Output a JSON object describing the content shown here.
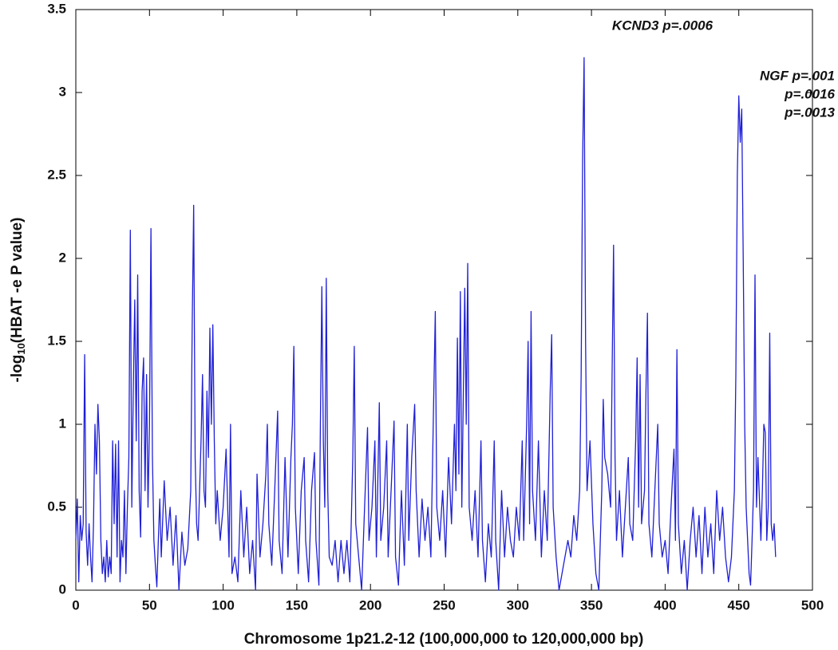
{
  "chart_data": {
    "type": "line",
    "x_label": "Chromosome 1p21.2-12 (100,000,000 to 120,000,000 bp)",
    "y_label": [
      "-log",
      "10",
      "(HBAT -e P value)"
    ],
    "annotations": [
      "KCND3 p=.0006",
      "NGF p=.001",
      "p=.0016",
      "p=.0013"
    ],
    "color": "#1f1fd6",
    "xlim": [
      0,
      500
    ],
    "xticks": [
      0,
      50,
      100,
      150,
      200,
      250,
      300,
      350,
      400,
      450,
      500
    ],
    "ylim": [
      0,
      3.5
    ],
    "yticks": [
      0,
      0.5,
      1,
      1.5,
      2,
      2.5,
      3,
      3.5
    ],
    "grid": false,
    "x": [
      0,
      1,
      2,
      3,
      4,
      5,
      6,
      7,
      8,
      9,
      10,
      11,
      12,
      13,
      14,
      15,
      16,
      17,
      18,
      19,
      20,
      21,
      22,
      23,
      24,
      25,
      26,
      27,
      28,
      29,
      30,
      31,
      32,
      33,
      34,
      35,
      36,
      37,
      38,
      39,
      40,
      41,
      42,
      43,
      44,
      45,
      46,
      47,
      48,
      49,
      50,
      51,
      52,
      53,
      54,
      55,
      56,
      57,
      58,
      60,
      62,
      64,
      66,
      68,
      70,
      72,
      74,
      76,
      78,
      79,
      80,
      81,
      82,
      83,
      85,
      86,
      87,
      88,
      89,
      90,
      91,
      92,
      93,
      94,
      95,
      96,
      98,
      100,
      102,
      104,
      105,
      106,
      108,
      110,
      112,
      114,
      116,
      118,
      120,
      122,
      123,
      125,
      127,
      129,
      130,
      131,
      133,
      135,
      137,
      138,
      140,
      142,
      144,
      146,
      147,
      148,
      149,
      151,
      153,
      155,
      156,
      158,
      160,
      162,
      163,
      165,
      166,
      167,
      168,
      169,
      170,
      171,
      172,
      174,
      176,
      178,
      180,
      182,
      184,
      186,
      188,
      189,
      190,
      192,
      194,
      196,
      198,
      199,
      201,
      203,
      204,
      206,
      207,
      209,
      211,
      212,
      214,
      216,
      217,
      219,
      221,
      223,
      225,
      226,
      228,
      230,
      231,
      233,
      235,
      237,
      239,
      241,
      243,
      244,
      245,
      247,
      249,
      251,
      253,
      255,
      257,
      258,
      259,
      260,
      261,
      262,
      264,
      265,
      266,
      267,
      269,
      271,
      273,
      275,
      276,
      278,
      280,
      282,
      284,
      285,
      287,
      289,
      291,
      293,
      295,
      297,
      299,
      301,
      303,
      304,
      306,
      307,
      308,
      309,
      310,
      312,
      314,
      316,
      318,
      320,
      322,
      323,
      324,
      326,
      328,
      330,
      332,
      334,
      336,
      338,
      340,
      342,
      343,
      344,
      345,
      346,
      347,
      349,
      351,
      353,
      355,
      357,
      358,
      359,
      361,
      363,
      364,
      365,
      366,
      367,
      369,
      371,
      373,
      375,
      376,
      378,
      380,
      381,
      382,
      383,
      384,
      386,
      387,
      388,
      389,
      391,
      393,
      395,
      396,
      398,
      400,
      402,
      404,
      406,
      407,
      408,
      409,
      411,
      413,
      415,
      417,
      419,
      421,
      423,
      425,
      427,
      429,
      431,
      433,
      435,
      437,
      439,
      441,
      443,
      445,
      447,
      448,
      449,
      450,
      451,
      452,
      453,
      454,
      455,
      457,
      458,
      459,
      460,
      461,
      462,
      463,
      464,
      465,
      466,
      467,
      468,
      469,
      470,
      471,
      472,
      473,
      474,
      475
    ],
    "values": [
      0.3,
      0.55,
      0.05,
      0.45,
      0.3,
      0.4,
      1.42,
      0.35,
      0.15,
      0.4,
      0.2,
      0.05,
      0.4,
      1.0,
      0.7,
      1.12,
      0.9,
      0.3,
      0.1,
      0.2,
      0.05,
      0.3,
      0.08,
      0.2,
      0.1,
      0.9,
      0.4,
      0.88,
      0.2,
      0.9,
      0.05,
      0.3,
      0.2,
      0.6,
      0.1,
      0.5,
      0.8,
      2.17,
      0.5,
      1.2,
      1.75,
      0.9,
      1.9,
      0.6,
      0.32,
      1.2,
      1.4,
      0.6,
      1.3,
      0.5,
      1.0,
      2.18,
      0.8,
      0.3,
      0.15,
      0.02,
      0.3,
      0.55,
      0.2,
      0.66,
      0.3,
      0.5,
      0.15,
      0.45,
      0,
      0.35,
      0.15,
      0.25,
      0.6,
      1.6,
      2.32,
      0.8,
      0.4,
      0.3,
      0.9,
      1.3,
      0.6,
      0.5,
      1.2,
      0.8,
      1.58,
      1.0,
      1.6,
      0.9,
      0.4,
      0.6,
      0.3,
      0.5,
      0.85,
      0.2,
      1.0,
      0.1,
      0.2,
      0.05,
      0.6,
      0.2,
      0.5,
      0.1,
      0.3,
      0,
      0.7,
      0.2,
      0.4,
      0.7,
      1.0,
      0.4,
      0.15,
      0.6,
      1.08,
      0.3,
      0.1,
      0.8,
      0.2,
      0.8,
      1.0,
      1.47,
      0.5,
      0.1,
      0.6,
      0.8,
      0.3,
      0.05,
      0.6,
      0.83,
      0.3,
      0.03,
      1.0,
      1.83,
      0.9,
      0.5,
      1.88,
      0.6,
      0.2,
      0.15,
      0.3,
      0.05,
      0.3,
      0.1,
      0.3,
      0.05,
      0.8,
      1.47,
      0.4,
      0.2,
      0,
      0.5,
      0.98,
      0.3,
      0.5,
      0.9,
      0.2,
      1.13,
      0.3,
      0.5,
      0.9,
      0.2,
      0.6,
      1.02,
      0.2,
      0.03,
      0.6,
      0.15,
      1.0,
      0.3,
      0.8,
      1.12,
      0.6,
      0.2,
      0.55,
      0.3,
      0.5,
      0.2,
      1.2,
      1.68,
      0.5,
      0.3,
      0.6,
      0.2,
      0.8,
      0.4,
      1.0,
      0.6,
      1.52,
      0.7,
      1.8,
      0.5,
      1.82,
      1.0,
      1.97,
      0.5,
      0.3,
      0.6,
      0.2,
      0.9,
      0.3,
      0.05,
      0.4,
      0.2,
      0.9,
      0.3,
      0,
      0.6,
      0.2,
      0.5,
      0.3,
      0.2,
      0.5,
      0.3,
      0.9,
      0.3,
      1.0,
      1.5,
      0.4,
      1.68,
      0.6,
      0.3,
      0.9,
      0.2,
      0.6,
      0.3,
      1.2,
      1.54,
      0.5,
      0.2,
      0,
      0.1,
      0.2,
      0.3,
      0.2,
      0.45,
      0.3,
      0.6,
      1.3,
      2.6,
      3.21,
      1.5,
      0.6,
      0.9,
      0.4,
      0.1,
      0,
      0.6,
      1.15,
      0.8,
      0.7,
      0.5,
      1.3,
      2.08,
      0.8,
      0.3,
      0.6,
      0.2,
      0.5,
      0.8,
      0.4,
      0.3,
      0.9,
      1.4,
      0.5,
      1.3,
      0.4,
      0.6,
      1.2,
      1.67,
      0.4,
      0.2,
      0.6,
      1.0,
      0.4,
      0.2,
      0.3,
      0.1,
      0.5,
      0.85,
      0.3,
      1.45,
      0.4,
      0.1,
      0.3,
      0,
      0.3,
      0.5,
      0.2,
      0.45,
      0.1,
      0.5,
      0.2,
      0.4,
      0.1,
      0.6,
      0.3,
      0.5,
      0.2,
      0.05,
      0.2,
      0.6,
      1.3,
      2.5,
      2.98,
      2.7,
      2.9,
      2.0,
      1.0,
      0.5,
      0.1,
      0.03,
      0.3,
      0.6,
      1.9,
      0.5,
      0.8,
      0.55,
      0.3,
      0.6,
      1.0,
      0.95,
      0.3,
      0.5,
      1.55,
      0.4,
      0.3,
      0.4,
      0.2
    ]
  }
}
